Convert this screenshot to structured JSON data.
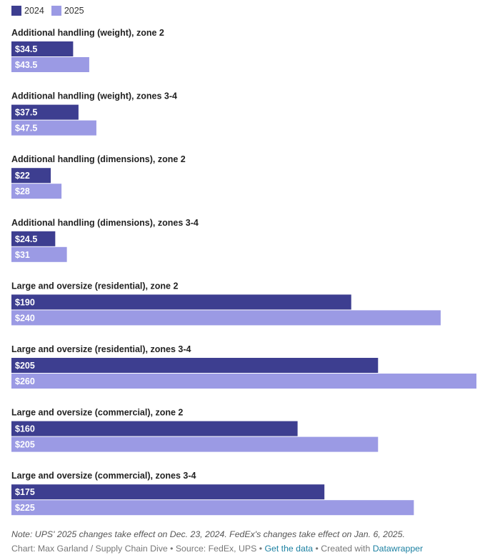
{
  "chart_data": {
    "type": "bar",
    "orientation": "horizontal",
    "categories": [
      "Additional handling (weight), zone 2",
      "Additional handling (weight), zones 3-4",
      "Additional handling (dimensions), zone 2",
      "Additional handling (dimensions), zones 3-4",
      "Large and oversize (residential), zone 2",
      "Large and oversize (residential), zones 3-4",
      "Large and oversize (commercial), zone 2",
      "Large and oversize (commercial), zones 3-4"
    ],
    "series": [
      {
        "name": "2024",
        "color": "#3d3e90",
        "values": [
          34.5,
          37.5,
          22,
          24.5,
          190,
          205,
          160,
          175
        ],
        "labels": [
          "$34.5",
          "$37.5",
          "$22",
          "$24.5",
          "$190",
          "$205",
          "$160",
          "$175"
        ]
      },
      {
        "name": "2025",
        "color": "#9b9ae4",
        "values": [
          43.5,
          47.5,
          28,
          31,
          240,
          260,
          205,
          225
        ],
        "labels": [
          "$43.5",
          "$47.5",
          "$28",
          "$31",
          "$240",
          "$260",
          "$205",
          "$225"
        ]
      }
    ],
    "xlim": [
      0,
      260
    ],
    "legend_position": "top-left",
    "grid": false
  },
  "note": "Note: UPS' 2025 changes take effect on Dec. 23, 2024. FedEx's changes take effect on Jan. 6, 2025.",
  "footer": {
    "prefix": "Chart: Max Garland / Supply Chain Dive • Source: FedEx, UPS • ",
    "get_data": "Get the data",
    "middle": " • Created with ",
    "datawrapper": "Datawrapper"
  }
}
